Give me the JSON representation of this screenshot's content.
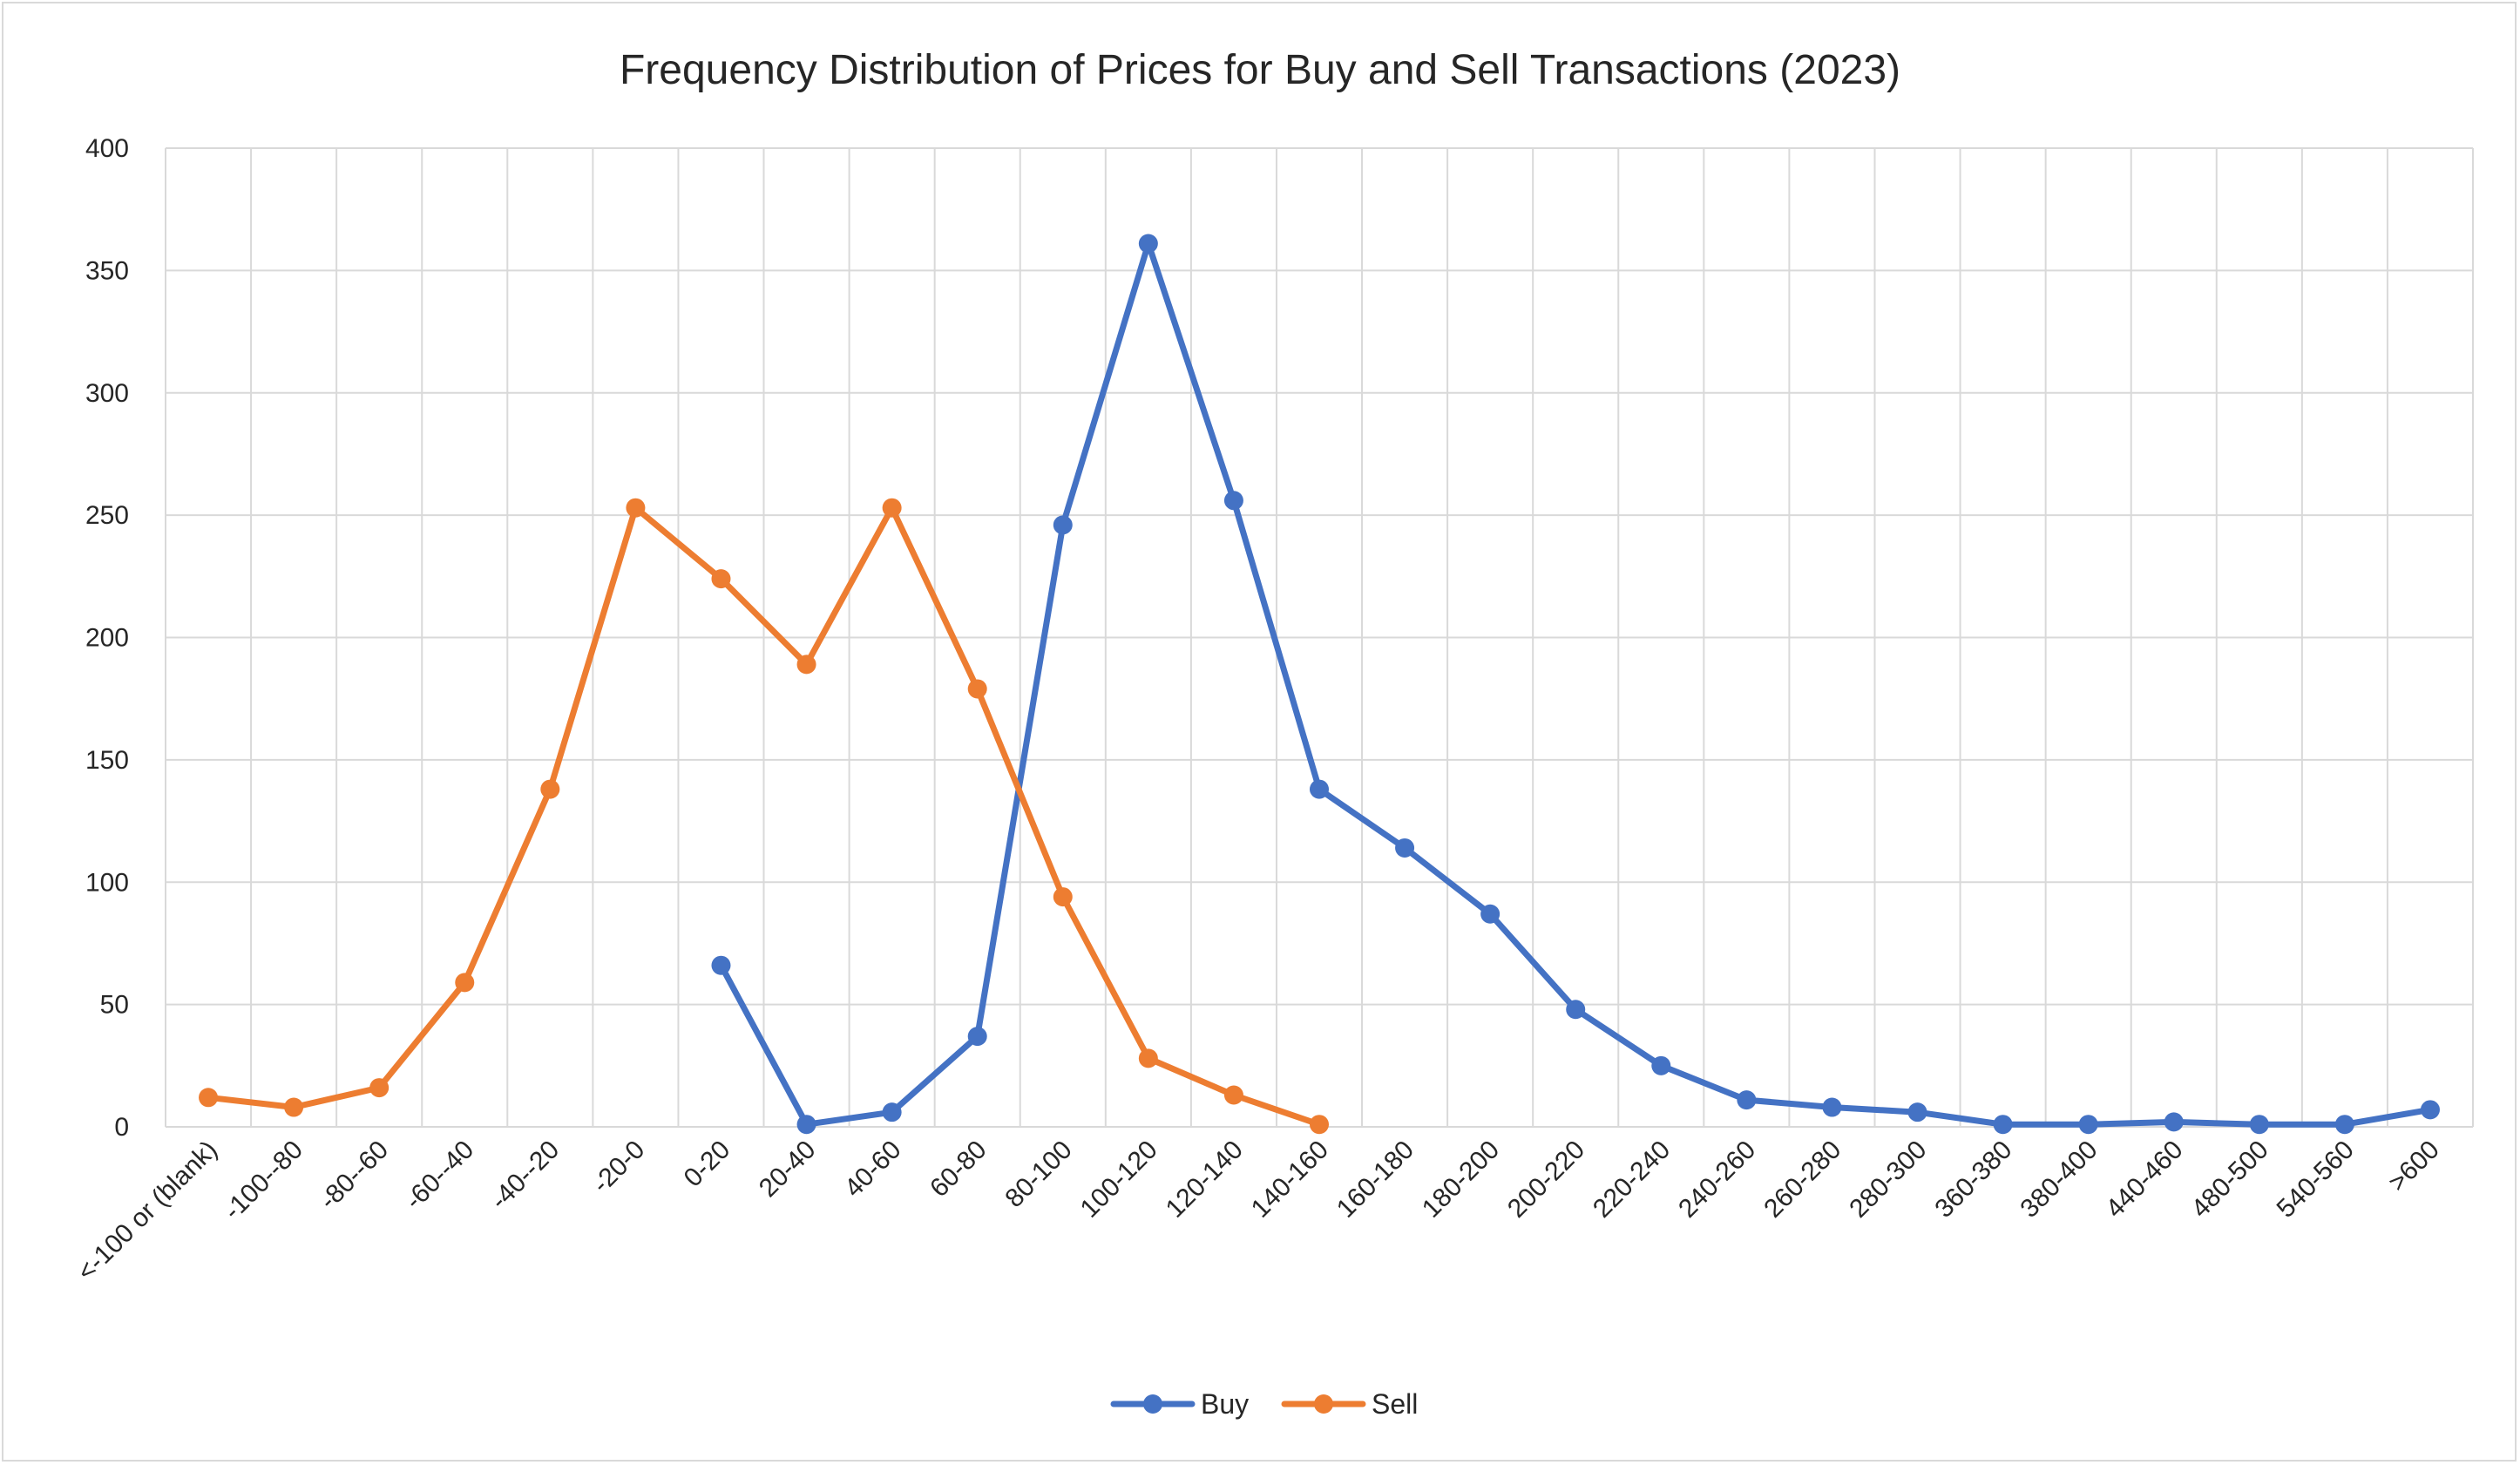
{
  "chart_data": {
    "type": "line",
    "title": "Frequency Distribution of Prices for Buy and Sell Transactions (2023)",
    "xlabel": "",
    "ylabel": "",
    "ylim": [
      0,
      400
    ],
    "yticks": [
      0,
      50,
      100,
      150,
      200,
      250,
      300,
      350,
      400
    ],
    "grid": true,
    "legend_position": "bottom",
    "categories": [
      "<-100 or (blank)",
      "-100--80",
      "-80--60",
      "-60--40",
      "-40--20",
      "-20-0",
      "0-20",
      "20-40",
      "40-60",
      "60-80",
      "80-100",
      "100-120",
      "120-140",
      "140-160",
      "160-180",
      "180-200",
      "200-220",
      "220-240",
      "240-260",
      "260-280",
      "280-300",
      "360-380",
      "380-400",
      "440-460",
      "480-500",
      "540-560",
      ">600"
    ],
    "series": [
      {
        "name": "Buy",
        "color": "#4472c4",
        "values": [
          null,
          null,
          null,
          null,
          null,
          null,
          66,
          1,
          6,
          37,
          246,
          361,
          256,
          138,
          114,
          87,
          48,
          25,
          11,
          8,
          6,
          1,
          1,
          2,
          1,
          1,
          7
        ]
      },
      {
        "name": "Sell",
        "color": "#ed7d31",
        "values": [
          12,
          8,
          16,
          59,
          138,
          253,
          224,
          189,
          253,
          179,
          94,
          28,
          13,
          1,
          null,
          null,
          null,
          null,
          null,
          null,
          null,
          null,
          null,
          null,
          null,
          null,
          null
        ]
      }
    ]
  }
}
